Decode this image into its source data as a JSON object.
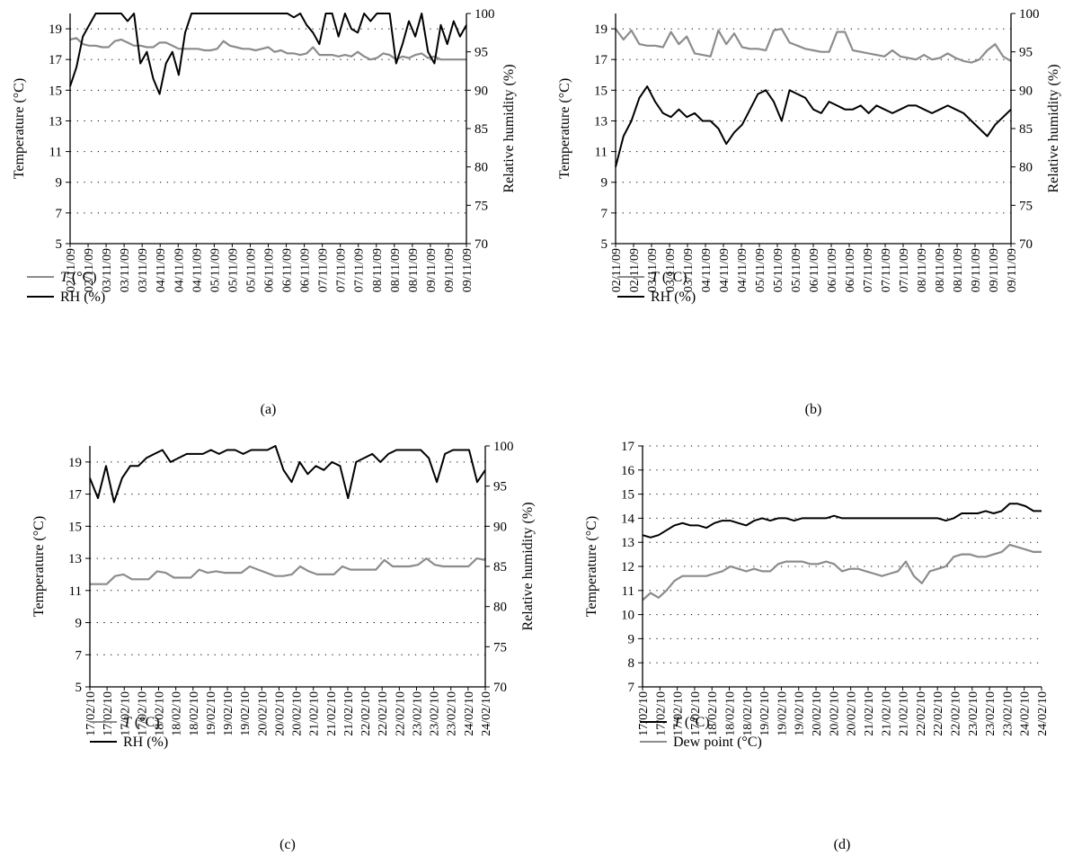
{
  "panels": [
    {
      "id": "a",
      "panel_label": "(a)",
      "legend": [
        {
          "label_italic": "T",
          "label": " (°C)",
          "color": "#8c8c8c"
        },
        {
          "label_italic": "",
          "label": "RH (%)",
          "color": "#000000"
        }
      ]
    },
    {
      "id": "b",
      "panel_label": "(b)",
      "legend": [
        {
          "label_italic": "T",
          "label": " (°C)",
          "color": "#8c8c8c"
        },
        {
          "label_italic": "",
          "label": "RH (%)",
          "color": "#000000"
        }
      ]
    },
    {
      "id": "c",
      "panel_label": "(c)",
      "legend": [
        {
          "label_italic": "T",
          "label": " (°C)",
          "color": "#8c8c8c"
        },
        {
          "label_italic": "",
          "label": "RH (%)",
          "color": "#000000"
        }
      ]
    },
    {
      "id": "d",
      "panel_label": "(d)",
      "legend": [
        {
          "label_italic": "T",
          "label": " (°C)",
          "color": "#000000"
        },
        {
          "label_italic": "",
          "label": "Dew point (°C)",
          "color": "#8c8c8c"
        }
      ]
    }
  ],
  "chart_data": [
    {
      "type": "line",
      "panel": "(a)",
      "xlabel": "",
      "x_tick_labels": [
        "02/11/09",
        "02/11/09",
        "03/11/09",
        "03/11/09",
        "03/11/09",
        "04/11/09",
        "04/11/09",
        "04/11/09",
        "05/11/09",
        "05/11/09",
        "05/11/09",
        "06/11/09",
        "06/11/09",
        "06/11/09",
        "07/11/09",
        "07/11/09",
        "07/11/09",
        "08/11/09",
        "08/11/09",
        "08/11/09",
        "09/11/09",
        "09/11/09",
        "09/11/09"
      ],
      "ylabel": "Temperature (°C)",
      "ylim": [
        5,
        20
      ],
      "yticks": [
        5,
        7,
        9,
        11,
        13,
        15,
        17,
        19
      ],
      "y2label": "Relative humidity (%)",
      "y2lim": [
        70,
        100
      ],
      "y2ticks": [
        70,
        75,
        80,
        85,
        90,
        95,
        100
      ],
      "grid": true,
      "series": [
        {
          "name": "T (°C)",
          "axis": "left",
          "color": "#8c8c8c",
          "values": [
            18.3,
            18.4,
            18.0,
            17.9,
            17.9,
            17.8,
            17.8,
            18.2,
            18.3,
            18.1,
            17.9,
            17.9,
            17.8,
            17.8,
            18.1,
            18.1,
            17.9,
            17.7,
            17.7,
            17.7,
            17.7,
            17.6,
            17.6,
            17.7,
            18.2,
            17.9,
            17.8,
            17.7,
            17.7,
            17.6,
            17.7,
            17.8,
            17.5,
            17.6,
            17.4,
            17.4,
            17.3,
            17.4,
            17.8,
            17.3,
            17.3,
            17.3,
            17.2,
            17.3,
            17.2,
            17.5,
            17.2,
            17.0,
            17.1,
            17.4,
            17.3,
            17.0,
            17.2,
            17.1,
            17.3,
            17.4,
            17.1,
            17.2,
            17.0,
            17.0,
            17.0,
            17.0,
            17.0
          ]
        },
        {
          "name": "RH (%)",
          "axis": "right",
          "color": "#000000",
          "values": [
            90.5,
            93.0,
            97.0,
            98.5,
            100,
            100,
            100,
            100,
            100,
            99.0,
            100,
            93.5,
            95.0,
            91.5,
            89.5,
            93.5,
            95.0,
            92.0,
            97.5,
            100,
            100,
            100,
            100,
            100,
            100,
            100,
            100,
            100,
            100,
            100,
            100,
            100,
            100,
            100,
            100,
            99.5,
            100,
            98.5,
            97.5,
            96.0,
            100,
            100,
            97.0,
            100,
            98.0,
            97.5,
            100,
            99.0,
            100,
            100,
            100,
            93.5,
            96.0,
            99.0,
            97.0,
            100,
            95.0,
            93.5,
            98.5,
            96.0,
            99.0,
            97.0,
            98.5
          ]
        }
      ]
    },
    {
      "type": "line",
      "panel": "(b)",
      "xlabel": "",
      "x_tick_labels": [
        "02/11/09",
        "02/11/09",
        "03/11/09",
        "03/11/09",
        "03/11/09",
        "04/11/09",
        "04/11/09",
        "04/11/09",
        "05/11/09",
        "05/11/09",
        "05/11/09",
        "06/11/09",
        "06/11/09",
        "06/11/09",
        "07/11/09",
        "07/11/09",
        "07/11/09",
        "08/11/09",
        "08/11/09",
        "08/11/09",
        "09/11/09",
        "09/11/09",
        "09/11/09"
      ],
      "ylabel": "Temperature (°C)",
      "ylim": [
        5,
        20
      ],
      "yticks": [
        5,
        7,
        9,
        11,
        13,
        15,
        17,
        19
      ],
      "y2label": "Relative humidity (%)",
      "y2lim": [
        70,
        100
      ],
      "y2ticks": [
        70,
        75,
        80,
        85,
        90,
        95,
        100
      ],
      "grid": true,
      "series": [
        {
          "name": "T (°C)",
          "axis": "left",
          "color": "#8c8c8c",
          "values": [
            19.0,
            18.3,
            18.9,
            18.0,
            17.9,
            17.9,
            17.8,
            18.8,
            18.0,
            18.5,
            17.4,
            17.3,
            17.2,
            18.9,
            18.0,
            18.7,
            17.8,
            17.7,
            17.7,
            17.6,
            18.9,
            19.0,
            18.1,
            17.9,
            17.7,
            17.6,
            17.5,
            17.5,
            18.8,
            18.8,
            17.6,
            17.5,
            17.4,
            17.3,
            17.2,
            17.6,
            17.2,
            17.1,
            17.0,
            17.3,
            17.0,
            17.1,
            17.4,
            17.1,
            16.9,
            16.8,
            17.0,
            17.6,
            18.0,
            17.2,
            16.9
          ]
        },
        {
          "name": "RH (%)",
          "axis": "right",
          "color": "#000000",
          "values": [
            80.0,
            84.0,
            86.0,
            89.0,
            90.5,
            88.5,
            87.0,
            86.5,
            87.5,
            86.5,
            87.0,
            86.0,
            86.0,
            85.0,
            83.0,
            84.5,
            85.5,
            87.5,
            89.5,
            90.0,
            88.5,
            86.0,
            90.0,
            89.5,
            89.0,
            87.5,
            87.0,
            88.5,
            88.0,
            87.5,
            87.5,
            88.0,
            87.0,
            88.0,
            87.5,
            87.0,
            87.5,
            88.0,
            88.0,
            87.5,
            87.0,
            87.5,
            88.0,
            87.5,
            87.0,
            86.0,
            85.0,
            84.0,
            85.5,
            86.5,
            87.5
          ]
        }
      ]
    },
    {
      "type": "line",
      "panel": "(c)",
      "xlabel": "",
      "x_tick_labels": [
        "17/02/10",
        "17/02/10",
        "17/02/10",
        "17/02/10",
        "18/02/10",
        "18/02/10",
        "18/02/10",
        "19/02/10",
        "19/02/10",
        "19/02/10",
        "20/02/10",
        "20/02/10",
        "20/02/10",
        "21/02/10",
        "21/02/10",
        "21/02/10",
        "22/02/10",
        "22/02/10",
        "22/02/10",
        "23/02/10",
        "23/02/10",
        "23/02/10",
        "24/02/10",
        "24/02/10"
      ],
      "ylabel": "Temperature (°C)",
      "ylim": [
        5,
        20
      ],
      "yticks": [
        5,
        7,
        9,
        11,
        13,
        15,
        17,
        19
      ],
      "y2label": "Relative humidity (%)",
      "y2lim": [
        70,
        100
      ],
      "y2ticks": [
        70,
        75,
        80,
        85,
        90,
        95,
        100
      ],
      "grid": true,
      "series": [
        {
          "name": "T (°C)",
          "axis": "left",
          "color": "#8c8c8c",
          "values": [
            11.4,
            11.4,
            11.4,
            11.9,
            12.0,
            11.7,
            11.7,
            11.7,
            12.2,
            12.1,
            11.8,
            11.8,
            11.8,
            12.3,
            12.1,
            12.2,
            12.1,
            12.1,
            12.1,
            12.5,
            12.3,
            12.1,
            11.9,
            11.9,
            12.0,
            12.5,
            12.2,
            12.0,
            12.0,
            12.0,
            12.5,
            12.3,
            12.3,
            12.3,
            12.3,
            12.9,
            12.5,
            12.5,
            12.5,
            12.6,
            13.0,
            12.6,
            12.5,
            12.5,
            12.5,
            12.5,
            13.0,
            12.9
          ]
        },
        {
          "name": "RH (%)",
          "axis": "right",
          "color": "#000000",
          "values": [
            96.0,
            93.5,
            97.5,
            93.0,
            96.0,
            97.5,
            97.5,
            98.5,
            99.0,
            99.5,
            98.0,
            98.5,
            99.0,
            99.0,
            99.0,
            99.5,
            99.0,
            99.5,
            99.5,
            99.0,
            99.5,
            99.5,
            99.5,
            100,
            97.0,
            95.5,
            98.0,
            96.5,
            97.5,
            97.0,
            98.0,
            97.5,
            93.5,
            98.0,
            98.5,
            99.0,
            98.0,
            99.0,
            99.5,
            99.5,
            99.5,
            99.5,
            98.5,
            95.5,
            99.0,
            99.5,
            99.5,
            99.5,
            95.5,
            97.0
          ]
        }
      ]
    },
    {
      "type": "line",
      "panel": "(d)",
      "xlabel": "",
      "x_tick_labels": [
        "17/02/10",
        "17/02/10",
        "17/02/10",
        "17/02/10",
        "18/02/10",
        "18/02/10",
        "18/02/10",
        "19/02/10",
        "19/02/10",
        "19/02/10",
        "20/02/10",
        "20/02/10",
        "20/02/10",
        "21/02/10",
        "21/02/10",
        "21/02/10",
        "22/02/10",
        "22/02/10",
        "22/02/10",
        "23/02/10",
        "23/02/10",
        "23/02/10",
        "24/02/10",
        "24/02/10"
      ],
      "ylabel": "Temperature (°C)",
      "ylim": [
        7,
        17
      ],
      "yticks": [
        7,
        8,
        9,
        10,
        11,
        12,
        13,
        14,
        15,
        16,
        17
      ],
      "grid": true,
      "series": [
        {
          "name": "T (°C)",
          "axis": "left",
          "color": "#000000",
          "values": [
            13.3,
            13.2,
            13.3,
            13.5,
            13.7,
            13.8,
            13.7,
            13.7,
            13.6,
            13.8,
            13.9,
            13.9,
            13.8,
            13.7,
            13.9,
            14.0,
            13.9,
            14.0,
            14.0,
            13.9,
            14.0,
            14.0,
            14.0,
            14.0,
            14.1,
            14.0,
            14.0,
            14.0,
            14.0,
            14.0,
            14.0,
            14.0,
            14.0,
            14.0,
            14.0,
            14.0,
            14.0,
            14.0,
            13.9,
            14.0,
            14.2,
            14.2,
            14.2,
            14.3,
            14.2,
            14.3,
            14.6,
            14.6,
            14.5,
            14.3,
            14.3
          ]
        },
        {
          "name": "Dew point (°C)",
          "axis": "left",
          "color": "#8c8c8c",
          "values": [
            10.6,
            10.9,
            10.7,
            11.0,
            11.4,
            11.6,
            11.6,
            11.6,
            11.6,
            11.7,
            11.8,
            12.0,
            11.9,
            11.8,
            11.9,
            11.8,
            11.8,
            12.1,
            12.2,
            12.2,
            12.2,
            12.1,
            12.1,
            12.2,
            12.1,
            11.8,
            11.9,
            11.9,
            11.8,
            11.7,
            11.6,
            11.7,
            11.8,
            12.2,
            11.6,
            11.3,
            11.8,
            11.9,
            12.0,
            12.4,
            12.5,
            12.5,
            12.4,
            12.4,
            12.5,
            12.6,
            12.9,
            12.8,
            12.7,
            12.6,
            12.6
          ]
        }
      ]
    }
  ]
}
